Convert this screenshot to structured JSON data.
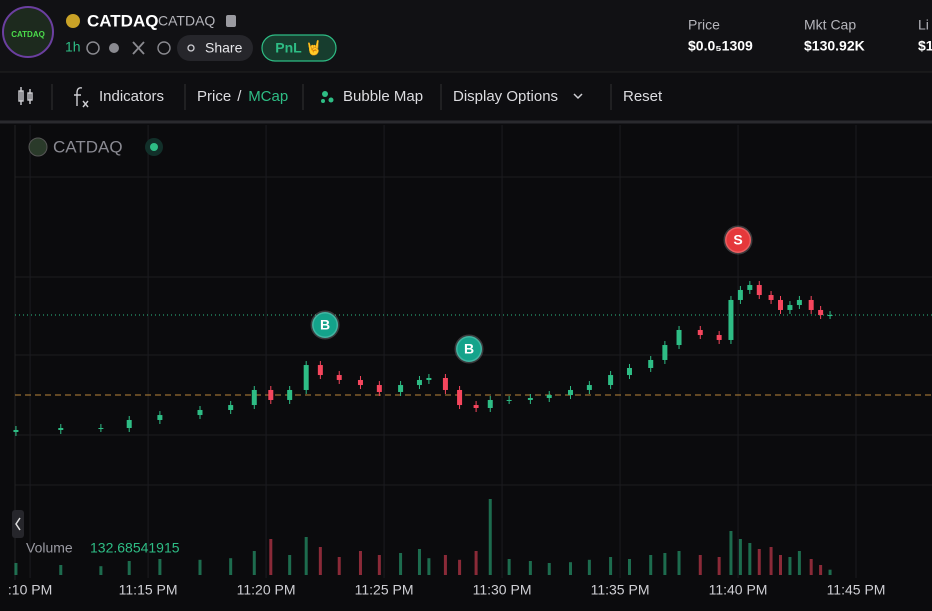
{
  "header": {
    "avatar_text": "CATDAQ",
    "name": "CATDAQ",
    "ticker": "CATDAQ",
    "interval": "1h",
    "share": "Share",
    "pnl": "PnL 🤘",
    "stats": [
      {
        "label": "Price",
        "value": "$0.0₅1309"
      },
      {
        "label": "Mkt Cap",
        "value": "$130.92K"
      },
      {
        "label": "Li",
        "value": "$1"
      }
    ]
  },
  "toolbar": {
    "indicators": "Indicators",
    "price": "Price",
    "separator": "/",
    "mcap": "MCap",
    "bubble_map": "Bubble Map",
    "display_options": "Display Options",
    "reset": "Reset"
  },
  "chart_data": {
    "type": "candlestick",
    "legend_name": "CATDAQ",
    "volume_label": "Volume",
    "x": [
      9.4,
      11.3,
      13.0,
      14.2,
      15.5,
      17.2,
      18.5,
      19.5,
      20.2,
      21.0,
      21.7,
      22.3,
      23.1,
      24.0,
      24.8,
      25.7,
      26.5,
      26.9,
      27.6,
      28.2,
      28.9,
      29.5,
      30.3,
      31.2,
      32.0,
      32.9,
      33.7,
      34.6,
      35.4,
      36.3,
      36.9,
      37.5,
      38.4,
      39.2,
      39.7,
      40.1,
      40.5,
      40.9,
      41.4,
      41.8,
      42.2,
      42.6,
      43.1,
      43.5,
      43.9
    ],
    "open": [
      116.3,
      116.55,
      116.8,
      116.8,
      117.8,
      118.42,
      119.05,
      119.67,
      121.55,
      120.3,
      121.55,
      124.67,
      123.42,
      122.8,
      122.17,
      121.3,
      122.17,
      122.8,
      123.05,
      121.55,
      119.67,
      119.3,
      120.3,
      120.3,
      120.55,
      120.92,
      121.55,
      122.17,
      123.42,
      124.3,
      125.3,
      127.17,
      129.05,
      128.42,
      127.8,
      132.8,
      134.05,
      134.67,
      133.42,
      132.8,
      131.55,
      132.17,
      132.8,
      131.55,
      130.92
    ],
    "high": [
      117.05,
      117.3,
      117.3,
      118.3,
      118.92,
      119.55,
      120.17,
      122.05,
      122.05,
      122.05,
      125.17,
      125.17,
      123.92,
      123.3,
      122.67,
      122.67,
      123.3,
      123.55,
      123.55,
      122.05,
      120.17,
      120.8,
      120.8,
      121.05,
      121.42,
      122.05,
      122.67,
      123.92,
      124.8,
      125.8,
      127.67,
      129.55,
      129.55,
      128.92,
      133.3,
      134.55,
      135.17,
      135.17,
      133.92,
      133.3,
      132.67,
      133.3,
      133.3,
      132.05,
      131.42
    ],
    "low": [
      115.8,
      116.05,
      116.3,
      116.3,
      117.3,
      117.92,
      118.55,
      119.17,
      119.8,
      119.8,
      121.05,
      122.92,
      122.3,
      121.67,
      120.8,
      120.8,
      121.67,
      122.3,
      121.05,
      119.17,
      118.8,
      118.8,
      119.8,
      119.8,
      120.05,
      120.42,
      121.05,
      121.67,
      122.92,
      123.8,
      124.8,
      126.67,
      127.92,
      127.3,
      127.3,
      132.3,
      133.55,
      132.92,
      132.3,
      131.05,
      131.05,
      131.67,
      131.05,
      130.42,
      130.42
    ],
    "close": [
      116.55,
      116.8,
      116.8,
      117.8,
      118.42,
      119.05,
      119.67,
      121.55,
      120.3,
      121.55,
      124.67,
      123.42,
      122.8,
      122.17,
      121.3,
      122.17,
      122.8,
      123.05,
      121.55,
      119.67,
      119.3,
      120.3,
      120.3,
      120.55,
      120.92,
      121.55,
      122.17,
      123.42,
      124.3,
      125.3,
      127.17,
      129.05,
      128.42,
      127.8,
      132.8,
      134.05,
      134.67,
      133.42,
      132.8,
      131.55,
      132.17,
      132.8,
      131.55,
      130.92,
      130.92
    ],
    "volume": [
      300,
      250,
      220,
      350,
      400,
      380,
      420,
      600,
      900,
      500,
      950,
      700,
      450,
      600,
      500,
      550,
      650,
      420,
      500,
      380,
      600,
      1900,
      400,
      350,
      300,
      320,
      380,
      450,
      400,
      500,
      550,
      600,
      500,
      450,
      1100,
      900,
      800,
      650,
      700,
      500,
      450,
      600,
      400,
      250,
      132.68541915
    ],
    "up_color": "#2ebd85",
    "down_color": "#f6465d",
    "xlim": [
      9.36,
      48.22
    ],
    "ylim": [
      104.05,
      154.67
    ],
    "vlim": [
      0,
      2000
    ],
    "xticks": [
      {
        "value": 10,
        "label": ":10 PM"
      },
      {
        "value": 15,
        "label": "11:15 PM"
      },
      {
        "value": 20,
        "label": "11:20 PM"
      },
      {
        "value": 25,
        "label": "11:25 PM"
      },
      {
        "value": 30,
        "label": "11:30 PM"
      },
      {
        "value": 35,
        "label": "11:35 PM"
      },
      {
        "value": 40,
        "label": "11:40 PM"
      },
      {
        "value": 45,
        "label": "11:45 PM"
      }
    ],
    "price_line": 130.92,
    "entry_line": 120.92,
    "trades": [
      {
        "label": "B",
        "x": 22.5,
        "value": 129.67,
        "color": "#14a38b"
      },
      {
        "label": "B",
        "x": 28.6,
        "value": 126.67,
        "color": "#14a38b"
      },
      {
        "label": "S",
        "x": 40.0,
        "value": 140.3,
        "color": "#e5383b"
      }
    ],
    "grid": true
  }
}
